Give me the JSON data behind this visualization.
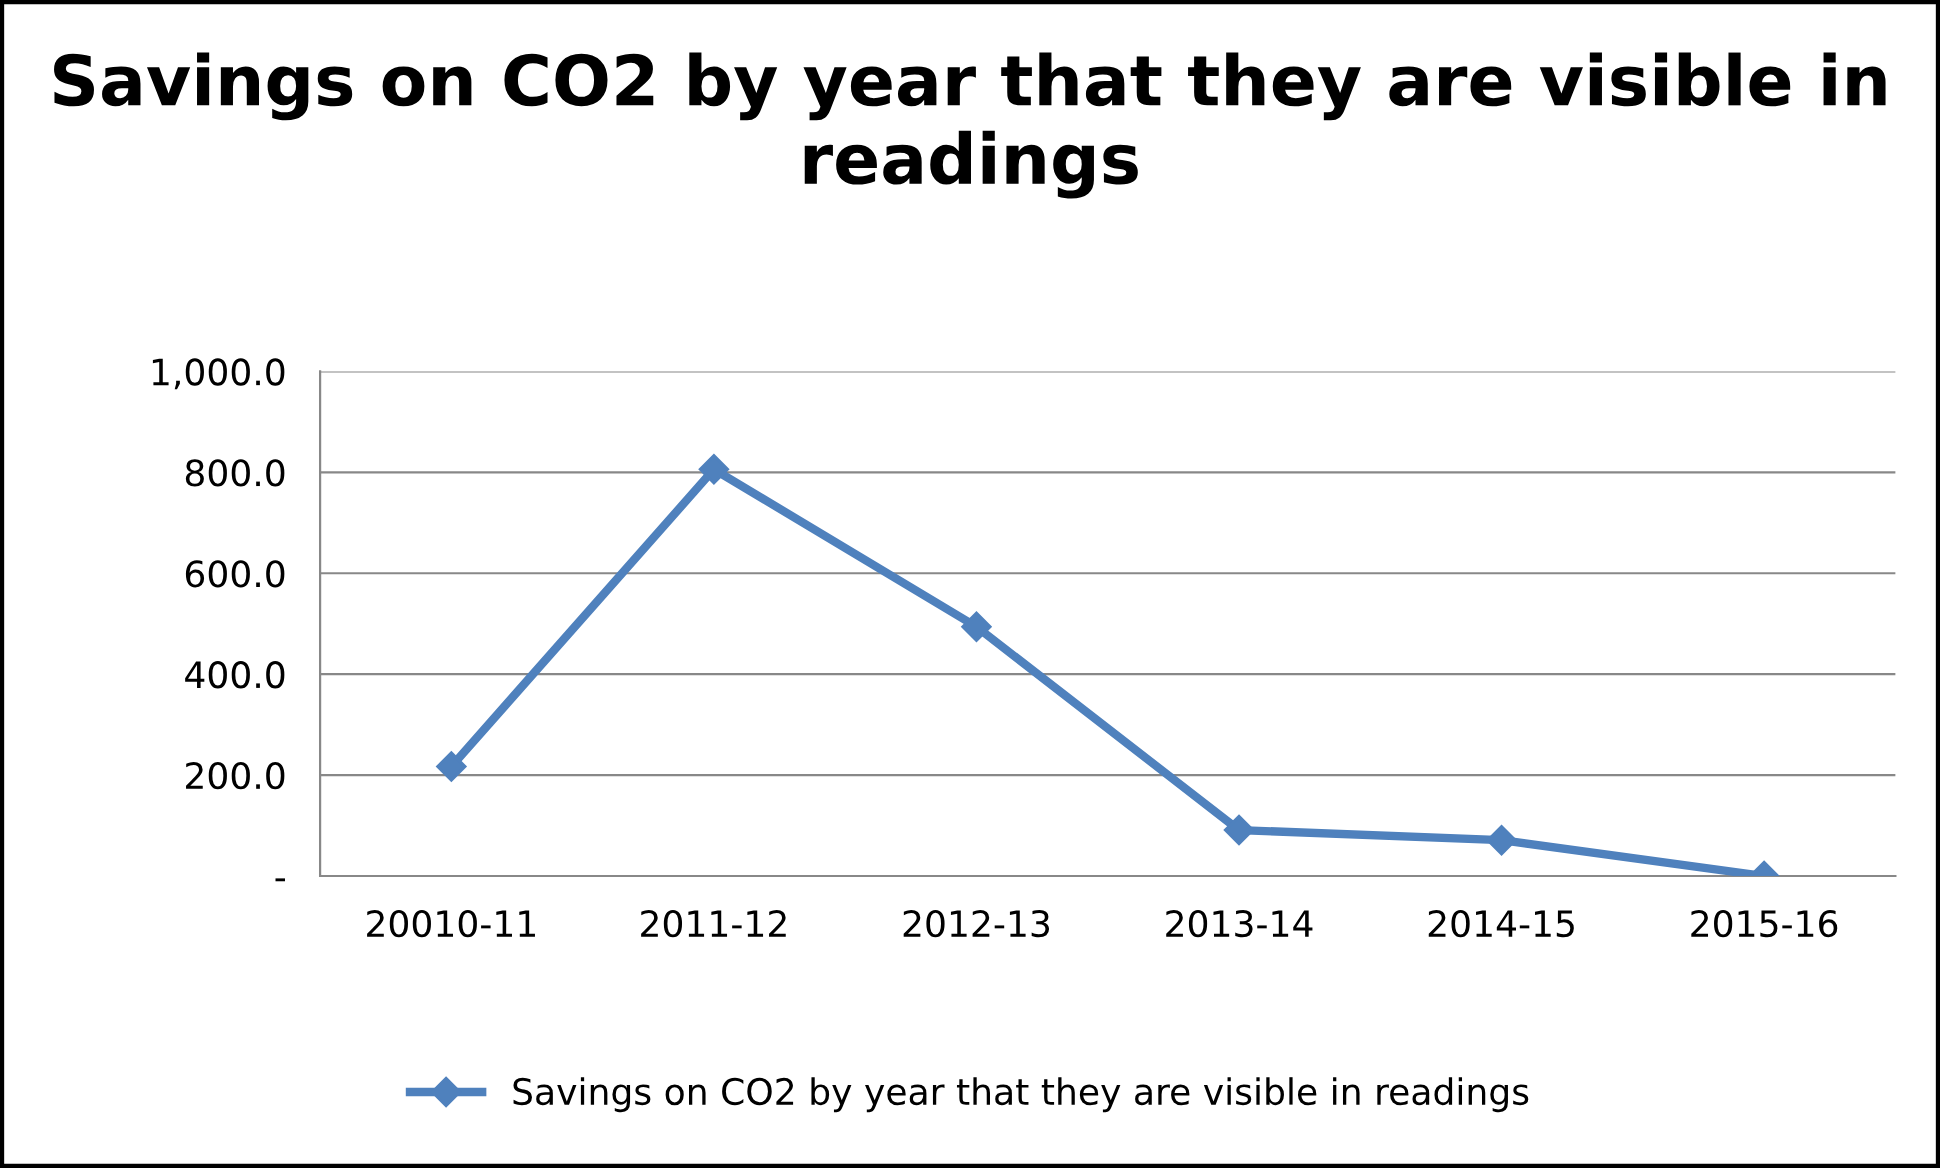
{
  "chart_data": {
    "type": "line",
    "title": "Savings on CO2 by year that they are visible in readings",
    "categories": [
      "20010-11",
      "2011-12",
      "2012-13",
      "2013-14",
      "2014-15",
      "2015-16"
    ],
    "series": [
      {
        "name": "Savings on CO2 by year that they are visible in readings",
        "color": "#4f81bd",
        "values": [
          217,
          806,
          494,
          91,
          71,
          0
        ]
      }
    ],
    "ylim": [
      0,
      1000
    ],
    "yticks": [
      {
        "value": 0,
        "label": "-"
      },
      {
        "value": 200,
        "label": "200.0"
      },
      {
        "value": 400,
        "label": "400.0"
      },
      {
        "value": 600,
        "label": "600.0"
      },
      {
        "value": 800,
        "label": "800.0"
      },
      {
        "value": 1000,
        "label": "1,000.0"
      }
    ],
    "grid": "y",
    "legend": "bottom",
    "marker": "diamond",
    "line_style": "solid"
  }
}
